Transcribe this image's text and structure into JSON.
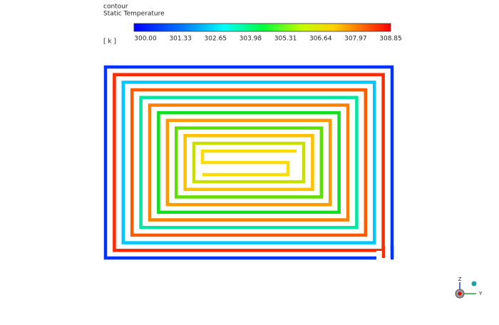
{
  "legend": {
    "title": "contour",
    "subtitle": "Static Temperature",
    "unit": "[ k ]",
    "ticks": [
      "300.00",
      "301.33",
      "302.65",
      "303.98",
      "305.31",
      "306.64",
      "307.97",
      "308.85"
    ]
  },
  "axes_triad": {
    "labels": [
      "Z",
      "Y"
    ]
  }
}
